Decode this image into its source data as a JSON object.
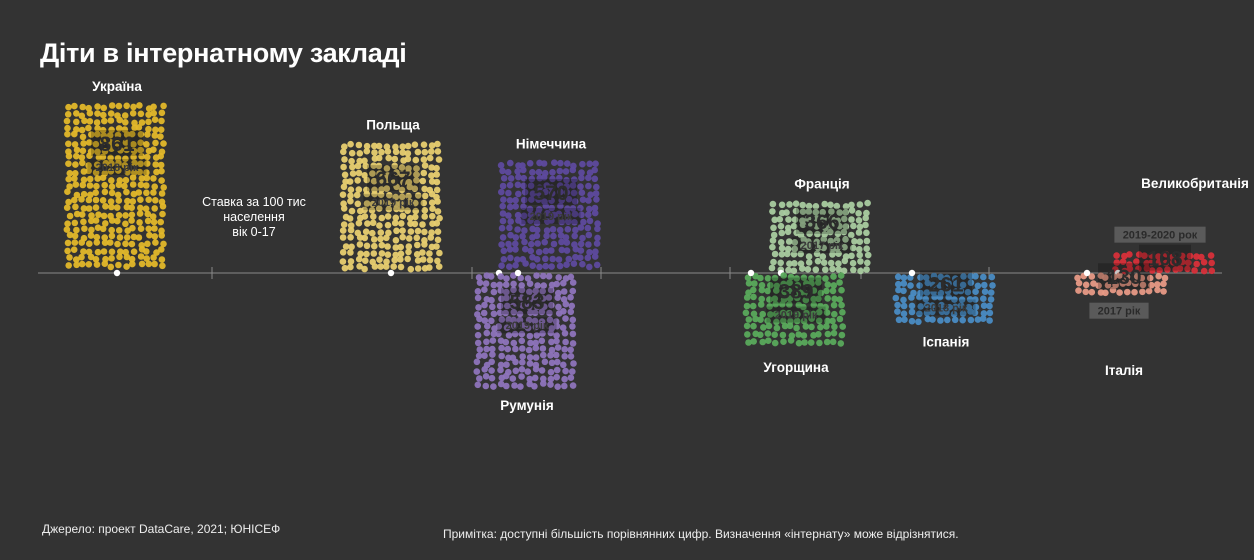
{
  "header": {
    "title": "Діти в інтернатному закладі"
  },
  "legend_note": {
    "line1": "Ставка за 100 тис",
    "line2": "населення",
    "line3": "вік 0-17"
  },
  "footer": {
    "source": "Джерело: проект DataCare, 2021; ЮНІСЕФ",
    "note": "Примітка: доступні більшість порівнянних цифр. Визначення «інтернату» може відрізнятися."
  },
  "chart_data": {
    "type": "bar",
    "title": "Діти в інтернатному закладі",
    "ylabel": "Ставка за 100 тис населення вік 0-17",
    "series": [
      {
        "name": "Україна",
        "value": 861,
        "year_label": "2018 рік",
        "direction": "up",
        "color": "#e3b82a"
      },
      {
        "name": "Польща",
        "value": 667,
        "year_label": "2019 рік",
        "direction": "up",
        "color": "#e8cf70"
      },
      {
        "name": "Німеччина",
        "value": 570,
        "year_label": "2019 рік",
        "direction": "up",
        "color": "#5e4a9e"
      },
      {
        "name": "Румунія",
        "value": 583,
        "year_label": "2019 рік",
        "direction": "down",
        "color": "#8e74bc"
      },
      {
        "name": "Франція",
        "value": 366,
        "year_label": "2017 рік",
        "direction": "up",
        "color": "#a9ccA0"
      },
      {
        "name": "Угорщина",
        "value": 389,
        "year_label": "2019 рік",
        "direction": "down",
        "color": "#5aaa5c"
      },
      {
        "name": "Іспанія",
        "value": 261,
        "year_label": "2018 рік",
        "direction": "down",
        "color": "#4a8cc4"
      },
      {
        "name": "Великобританія",
        "value": 108,
        "year_label": "2019-2020 рок",
        "direction": "up",
        "color": "#d8303a"
      },
      {
        "name": "Італія",
        "value": 130,
        "year_label": "2017 рік",
        "direction": "down",
        "color": "#e89a86"
      }
    ]
  }
}
